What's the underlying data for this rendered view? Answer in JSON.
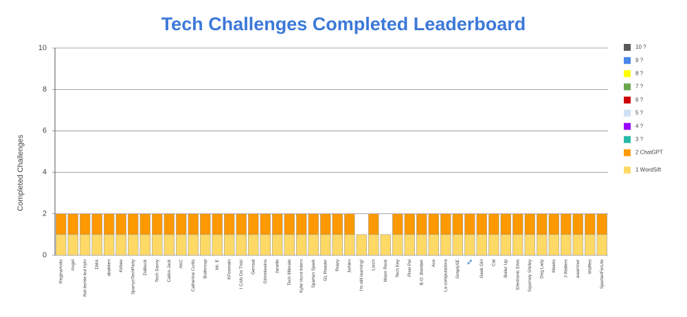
{
  "chart_data": {
    "type": "stacked_bar",
    "title": "Tech Challenges Completed Leaderboard",
    "y_label": "Completed Challenges",
    "categories": [
      "ReginaAnits",
      "Angel",
      "Not techie but tryin",
      "DMA",
      "abakken",
      "Kirbee",
      "SparrysTechParty",
      "Dalbuck",
      "Tech Savvy",
      "Calico Jack",
      "AKC",
      "Catherine Curtis",
      "Buttercup",
      "Mr. E",
      "KFosmain",
      "I CAN Do This!",
      "Gerraat",
      "Gimmiewins",
      "Janelle",
      "Tech Illiterate",
      "Kylie Hurd-Intern",
      "Spartan Spark",
      "GL Reader",
      "Roary",
      "JoAlen",
      "I'm still learning!",
      "Lorch",
      "Moon Rock",
      "Tech Key",
      "Pixel Pal",
      "B.O. Bomber",
      "Ace",
      "La computadora",
      "SimplySE",
      "🐾",
      "Geek Girl",
      "Cat",
      "Boiler Up",
      "Electronic Elvis",
      "Squirrely Shirley",
      "Dog Lady",
      "Meeks",
      "J.Walters",
      "awarriner",
      "Waffles",
      "SpartanForLife"
    ],
    "series": [
      {
        "name": "10 ?",
        "color": "#595959",
        "values": [
          0,
          0,
          0,
          0,
          0,
          0,
          0,
          0,
          0,
          0,
          0,
          0,
          0,
          0,
          0,
          0,
          0,
          0,
          0,
          0,
          0,
          0,
          0,
          0,
          0,
          0,
          0,
          0,
          0,
          0,
          0,
          0,
          0,
          0,
          0,
          0,
          0,
          0,
          0,
          0,
          0,
          0,
          0,
          0,
          0,
          0
        ]
      },
      {
        "name": "9 ?",
        "color": "#4a86e8",
        "values": [
          0,
          0,
          0,
          0,
          0,
          0,
          0,
          0,
          0,
          0,
          0,
          0,
          0,
          0,
          0,
          0,
          0,
          0,
          0,
          0,
          0,
          0,
          0,
          0,
          0,
          0,
          0,
          0,
          0,
          0,
          0,
          0,
          0,
          0,
          0,
          0,
          0,
          0,
          0,
          0,
          0,
          0,
          0,
          0,
          0,
          0
        ]
      },
      {
        "name": "8 ?",
        "color": "#ffff00",
        "values": [
          0,
          0,
          0,
          0,
          0,
          0,
          0,
          0,
          0,
          0,
          0,
          0,
          0,
          0,
          0,
          0,
          0,
          0,
          0,
          0,
          0,
          0,
          0,
          0,
          0,
          0,
          0,
          0,
          0,
          0,
          0,
          0,
          0,
          0,
          0,
          0,
          0,
          0,
          0,
          0,
          0,
          0,
          0,
          0,
          0,
          0
        ]
      },
      {
        "name": "7 ?",
        "color": "#6aa84f",
        "values": [
          0,
          0,
          0,
          0,
          0,
          0,
          0,
          0,
          0,
          0,
          0,
          0,
          0,
          0,
          0,
          0,
          0,
          0,
          0,
          0,
          0,
          0,
          0,
          0,
          0,
          0,
          0,
          0,
          0,
          0,
          0,
          0,
          0,
          0,
          0,
          0,
          0,
          0,
          0,
          0,
          0,
          0,
          0,
          0,
          0,
          0
        ]
      },
      {
        "name": "6 ?",
        "color": "#cc0000",
        "values": [
          0,
          0,
          0,
          0,
          0,
          0,
          0,
          0,
          0,
          0,
          0,
          0,
          0,
          0,
          0,
          0,
          0,
          0,
          0,
          0,
          0,
          0,
          0,
          0,
          0,
          0,
          0,
          0,
          0,
          0,
          0,
          0,
          0,
          0,
          0,
          0,
          0,
          0,
          0,
          0,
          0,
          0,
          0,
          0,
          0,
          0
        ]
      },
      {
        "name": "5 ?",
        "color": "#cfe2f3",
        "values": [
          0,
          0,
          0,
          0,
          0,
          0,
          0,
          0,
          0,
          0,
          0,
          0,
          0,
          0,
          0,
          0,
          0,
          0,
          0,
          0,
          0,
          0,
          0,
          0,
          0,
          0,
          0,
          0,
          0,
          0,
          0,
          0,
          0,
          0,
          0,
          0,
          0,
          0,
          0,
          0,
          0,
          0,
          0,
          0,
          0,
          0
        ]
      },
      {
        "name": "4 ?",
        "color": "#9900ff",
        "values": [
          0,
          0,
          0,
          0,
          0,
          0,
          0,
          0,
          0,
          0,
          0,
          0,
          0,
          0,
          0,
          0,
          0,
          0,
          0,
          0,
          0,
          0,
          0,
          0,
          0,
          0,
          0,
          0,
          0,
          0,
          0,
          0,
          0,
          0,
          0,
          0,
          0,
          0,
          0,
          0,
          0,
          0,
          0,
          0,
          0,
          0
        ]
      },
      {
        "name": "3 ?",
        "color": "#26b8a8",
        "values": [
          0,
          0,
          0,
          0,
          0,
          0,
          0,
          0,
          0,
          0,
          0,
          0,
          0,
          0,
          0,
          0,
          0,
          0,
          0,
          0,
          0,
          0,
          0,
          0,
          0,
          0,
          0,
          0,
          0,
          0,
          0,
          0,
          0,
          0,
          0,
          0,
          0,
          0,
          0,
          0,
          0,
          0,
          0,
          0,
          0,
          0
        ]
      },
      {
        "name": "2 ChatGPT",
        "color": "#ff9900",
        "values": [
          1,
          1,
          1,
          1,
          1,
          1,
          1,
          1,
          1,
          1,
          1,
          1,
          1,
          1,
          1,
          1,
          1,
          1,
          1,
          1,
          1,
          1,
          1,
          1,
          1,
          0,
          1,
          0,
          1,
          1,
          1,
          1,
          1,
          1,
          1,
          1,
          1,
          1,
          1,
          1,
          1,
          1,
          1,
          1,
          1,
          1
        ]
      },
      {
        "name": "1 WordSift",
        "color": "#ffd966",
        "values": [
          1,
          1,
          1,
          1,
          1,
          1,
          1,
          1,
          1,
          1,
          1,
          1,
          1,
          1,
          1,
          1,
          1,
          1,
          1,
          1,
          1,
          1,
          1,
          1,
          1,
          1,
          1,
          1,
          1,
          1,
          1,
          1,
          1,
          1,
          1,
          1,
          1,
          1,
          1,
          1,
          1,
          1,
          1,
          1,
          1,
          1
        ]
      }
    ],
    "ylim": [
      0,
      10
    ],
    "yticks": [
      0,
      2,
      4,
      6,
      8,
      10
    ],
    "grid": true,
    "legend": "right"
  }
}
